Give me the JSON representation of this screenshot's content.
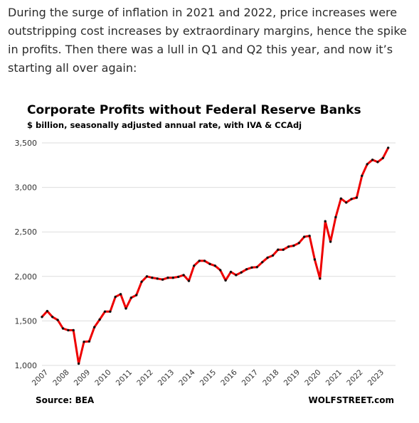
{
  "article": {
    "intro": "During the surge of inflation in 2021 and 2022, price increases were outstripping cost increases by extraordinary margins, hence the spike in profits. Then there was a lull in Q1 and Q2 this year, and now it’s starting all over again:"
  },
  "colors": {
    "line": "#ee0000",
    "marker": "#111111",
    "grid": "#dedede"
  },
  "chart_data": {
    "type": "line",
    "title": "Corporate Profits without Federal Reserve Banks",
    "subtitle": "$ billion, seasonally adjusted annual rate, with IVA & CCAdj",
    "xlabel": "",
    "ylabel": "",
    "ylim": [
      1000,
      3500
    ],
    "xlim": [
      2007.0,
      2023.85
    ],
    "grid": "horizontal",
    "yticks": [
      {
        "value": 1000,
        "label": "1,000"
      },
      {
        "value": 1500,
        "label": "1,500"
      },
      {
        "value": 2000,
        "label": "2,000"
      },
      {
        "value": 2500,
        "label": "2,500"
      },
      {
        "value": 3000,
        "label": "3,000"
      },
      {
        "value": 3500,
        "label": "3,500"
      }
    ],
    "xticks": [
      {
        "value": 2007,
        "label": "2007"
      },
      {
        "value": 2008,
        "label": "2008"
      },
      {
        "value": 2009,
        "label": "2009"
      },
      {
        "value": 2010,
        "label": "2010"
      },
      {
        "value": 2011,
        "label": "2011"
      },
      {
        "value": 2012,
        "label": "2012"
      },
      {
        "value": 2013,
        "label": "2013"
      },
      {
        "value": 2014,
        "label": "2014"
      },
      {
        "value": 2015,
        "label": "2015"
      },
      {
        "value": 2016,
        "label": "2016"
      },
      {
        "value": 2017,
        "label": "2017"
      },
      {
        "value": 2018,
        "label": "2018"
      },
      {
        "value": 2019,
        "label": "2019"
      },
      {
        "value": 2020,
        "label": "2020"
      },
      {
        "value": 2021,
        "label": "2021"
      },
      {
        "value": 2022,
        "label": "2022"
      },
      {
        "value": 2023,
        "label": "2023"
      }
    ],
    "series": [
      {
        "values": [
          {
            "x": "2007 Q1",
            "y": 1545
          },
          {
            "x": "2007 Q2",
            "y": 1610
          },
          {
            "x": "2007 Q3",
            "y": 1545
          },
          {
            "x": "2007 Q4",
            "y": 1510
          },
          {
            "x": "2008 Q1",
            "y": 1415
          },
          {
            "x": "2008 Q2",
            "y": 1395
          },
          {
            "x": "2008 Q3",
            "y": 1395
          },
          {
            "x": "2008 Q4",
            "y": 1020
          },
          {
            "x": "2009 Q1",
            "y": 1265
          },
          {
            "x": "2009 Q2",
            "y": 1270
          },
          {
            "x": "2009 Q3",
            "y": 1430
          },
          {
            "x": "2009 Q4",
            "y": 1515
          },
          {
            "x": "2010 Q1",
            "y": 1605
          },
          {
            "x": "2010 Q2",
            "y": 1605
          },
          {
            "x": "2010 Q3",
            "y": 1770
          },
          {
            "x": "2010 Q4",
            "y": 1800
          },
          {
            "x": "2011 Q1",
            "y": 1640
          },
          {
            "x": "2011 Q2",
            "y": 1760
          },
          {
            "x": "2011 Q3",
            "y": 1790
          },
          {
            "x": "2011 Q4",
            "y": 1940
          },
          {
            "x": "2012 Q1",
            "y": 2000
          },
          {
            "x": "2012 Q2",
            "y": 1985
          },
          {
            "x": "2012 Q3",
            "y": 1975
          },
          {
            "x": "2012 Q4",
            "y": 1965
          },
          {
            "x": "2013 Q1",
            "y": 1985
          },
          {
            "x": "2013 Q2",
            "y": 1985
          },
          {
            "x": "2013 Q3",
            "y": 1995
          },
          {
            "x": "2013 Q4",
            "y": 2015
          },
          {
            "x": "2014 Q1",
            "y": 1950
          },
          {
            "x": "2014 Q2",
            "y": 2120
          },
          {
            "x": "2014 Q3",
            "y": 2175
          },
          {
            "x": "2014 Q4",
            "y": 2175
          },
          {
            "x": "2015 Q1",
            "y": 2140
          },
          {
            "x": "2015 Q2",
            "y": 2120
          },
          {
            "x": "2015 Q3",
            "y": 2070
          },
          {
            "x": "2015 Q4",
            "y": 1955
          },
          {
            "x": "2016 Q1",
            "y": 2050
          },
          {
            "x": "2016 Q2",
            "y": 2015
          },
          {
            "x": "2016 Q3",
            "y": 2045
          },
          {
            "x": "2016 Q4",
            "y": 2080
          },
          {
            "x": "2017 Q1",
            "y": 2100
          },
          {
            "x": "2017 Q2",
            "y": 2105
          },
          {
            "x": "2017 Q3",
            "y": 2160
          },
          {
            "x": "2017 Q4",
            "y": 2210
          },
          {
            "x": "2018 Q1",
            "y": 2235
          },
          {
            "x": "2018 Q2",
            "y": 2300
          },
          {
            "x": "2018 Q3",
            "y": 2300
          },
          {
            "x": "2018 Q4",
            "y": 2335
          },
          {
            "x": "2019 Q1",
            "y": 2345
          },
          {
            "x": "2019 Q2",
            "y": 2375
          },
          {
            "x": "2019 Q3",
            "y": 2445
          },
          {
            "x": "2019 Q4",
            "y": 2455
          },
          {
            "x": "2020 Q1",
            "y": 2190
          },
          {
            "x": "2020 Q2",
            "y": 1975
          },
          {
            "x": "2020 Q3",
            "y": 2620
          },
          {
            "x": "2020 Q4",
            "y": 2390
          },
          {
            "x": "2021 Q1",
            "y": 2665
          },
          {
            "x": "2021 Q2",
            "y": 2875
          },
          {
            "x": "2021 Q3",
            "y": 2830
          },
          {
            "x": "2021 Q4",
            "y": 2870
          },
          {
            "x": "2022 Q1",
            "y": 2885
          },
          {
            "x": "2022 Q2",
            "y": 3130
          },
          {
            "x": "2022 Q3",
            "y": 3260
          },
          {
            "x": "2022 Q4",
            "y": 3310
          },
          {
            "x": "2023 Q1",
            "y": 3285
          },
          {
            "x": "2023 Q2",
            "y": 3330
          },
          {
            "x": "2023 Q3",
            "y": 3445
          }
        ]
      }
    ],
    "source": "Source: BEA",
    "brand": "WOLFSTREET.com"
  }
}
